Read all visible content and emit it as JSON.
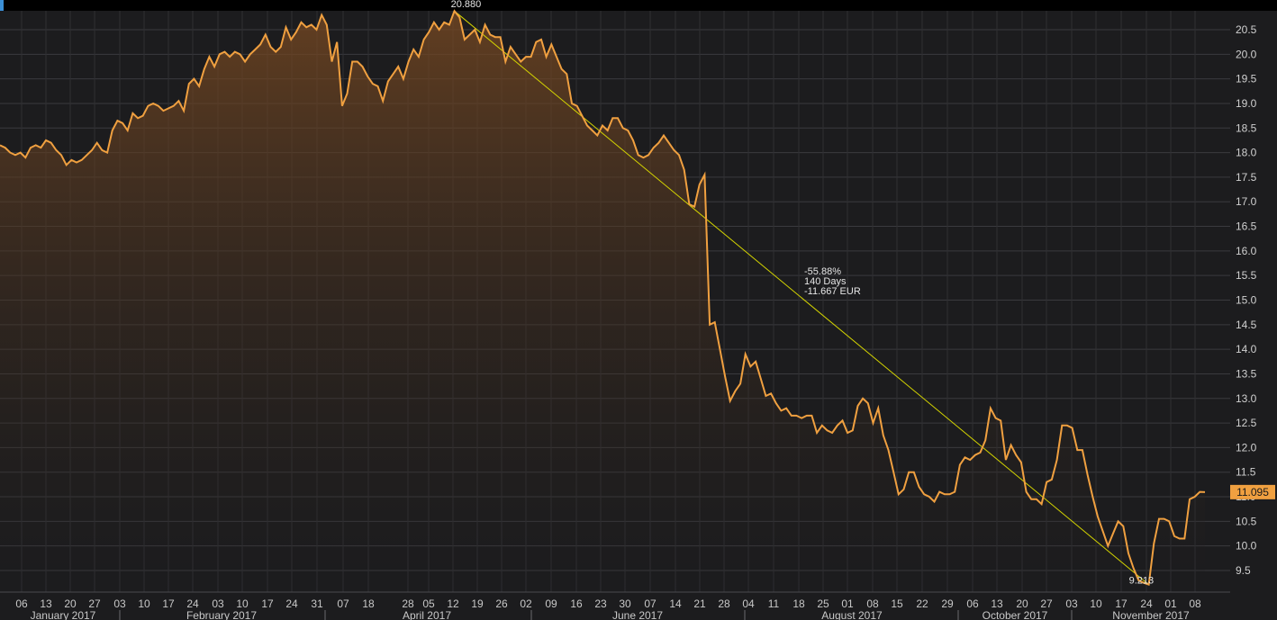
{
  "chart_data": {
    "type": "area",
    "ylim": [
      9.0,
      20.9
    ],
    "y_ticks": [
      "9.5",
      "10.0",
      "10.5",
      "11.0",
      "11.5",
      "12.0",
      "12.5",
      "13.0",
      "13.5",
      "14.0",
      "14.5",
      "15.0",
      "15.5",
      "16.0",
      "16.5",
      "17.0",
      "17.5",
      "18.0",
      "18.5",
      "19.0",
      "19.5",
      "20.0",
      "20.5"
    ],
    "x_ticks": [
      "06",
      "13",
      "20",
      "27",
      "03",
      "10",
      "17",
      "24",
      "03",
      "10",
      "17",
      "24",
      "31",
      "07",
      "18",
      "28",
      "05",
      "12",
      "19",
      "26",
      "02",
      "09",
      "16",
      "23",
      "30",
      "07",
      "14",
      "21",
      "28",
      "04",
      "11",
      "18",
      "25",
      "01",
      "08",
      "15",
      "22",
      "29",
      "06",
      "13",
      "20",
      "27",
      "03",
      "10",
      "17",
      "24",
      "01",
      "08"
    ],
    "months": [
      "January 2017",
      "February 2017",
      "April 2017",
      "June 2017",
      "August 2017",
      "October 2017",
      "November 2017"
    ],
    "last_value": "11.095",
    "high_label": "20.880",
    "low_label": "9.213",
    "annotation": [
      "-55.88%",
      "140 Days",
      "-11.667 EUR"
    ],
    "grid": true,
    "colors": {
      "line": "#f0a040",
      "trend": "#d4d400",
      "last_badge": "#f0a040",
      "background": "#1c1c1e",
      "grid": "#3a3a3e"
    },
    "series": [
      {
        "values": [
          18.15,
          18.1,
          18.0,
          17.95,
          18.0,
          17.9,
          18.1,
          18.15,
          18.1,
          18.25,
          18.2,
          18.05,
          17.95,
          17.75,
          17.85,
          17.8,
          17.85,
          17.95,
          18.05,
          18.2,
          18.05,
          18.0,
          18.45,
          18.65,
          18.6,
          18.45,
          18.8,
          18.7,
          18.75,
          18.95,
          19.0,
          18.95,
          18.85,
          18.9,
          18.95,
          19.05,
          18.85,
          19.4,
          19.5,
          19.35,
          19.7,
          19.95,
          19.75,
          20.0,
          20.05,
          19.95,
          20.05,
          20.0,
          19.85,
          20.0,
          20.1,
          20.2,
          20.4,
          20.15,
          20.05,
          20.15,
          20.55,
          20.3,
          20.45,
          20.65,
          20.55,
          20.6,
          20.5,
          20.8,
          20.6,
          19.85,
          20.25,
          18.95,
          19.2,
          19.85,
          19.85,
          19.75,
          19.55,
          19.4,
          19.35,
          19.05,
          19.45,
          19.6,
          19.75,
          19.5,
          19.85,
          20.1,
          19.95,
          20.3,
          20.45,
          20.65,
          20.5,
          20.65,
          20.6,
          20.88,
          20.75,
          20.3,
          20.4,
          20.5,
          20.25,
          20.6,
          20.4,
          20.35,
          20.35,
          19.85,
          20.15,
          20.0,
          19.85,
          19.95,
          19.95,
          20.25,
          20.3,
          19.95,
          20.2,
          19.95,
          19.7,
          19.6,
          19.0,
          18.95,
          18.75,
          18.55,
          18.45,
          18.35,
          18.55,
          18.45,
          18.7,
          18.7,
          18.5,
          18.45,
          18.25,
          17.95,
          17.9,
          17.95,
          18.1,
          18.2,
          18.35,
          18.2,
          18.05,
          17.95,
          17.65,
          16.95,
          16.9,
          17.35,
          17.55,
          14.5,
          14.55,
          14.0,
          13.45,
          12.95,
          13.15,
          13.3,
          13.9,
          13.65,
          13.75,
          13.4,
          13.05,
          13.1,
          12.9,
          12.75,
          12.8,
          12.65,
          12.65,
          12.6,
          12.65,
          12.65,
          12.3,
          12.45,
          12.35,
          12.3,
          12.45,
          12.55,
          12.3,
          12.35,
          12.85,
          13.0,
          12.9,
          12.5,
          12.8,
          12.25,
          11.95,
          11.5,
          11.05,
          11.15,
          11.5,
          11.5,
          11.2,
          11.05,
          11.0,
          10.9,
          11.1,
          11.05,
          11.05,
          11.1,
          11.65,
          11.8,
          11.75,
          11.85,
          11.9,
          12.15,
          12.8,
          12.6,
          12.55,
          11.75,
          12.05,
          11.85,
          11.7,
          11.1,
          10.95,
          10.95,
          10.85,
          11.3,
          11.35,
          11.75,
          12.45,
          12.45,
          12.4,
          11.95,
          11.95,
          11.45,
          11.0,
          10.6,
          10.3,
          10.0,
          10.25,
          10.5,
          10.4,
          9.85,
          9.55,
          9.3,
          9.25,
          9.213,
          10.05,
          10.55,
          10.55,
          10.5,
          10.2,
          10.15,
          10.15,
          10.95,
          11.0,
          11.1,
          11.095
        ]
      }
    ]
  }
}
